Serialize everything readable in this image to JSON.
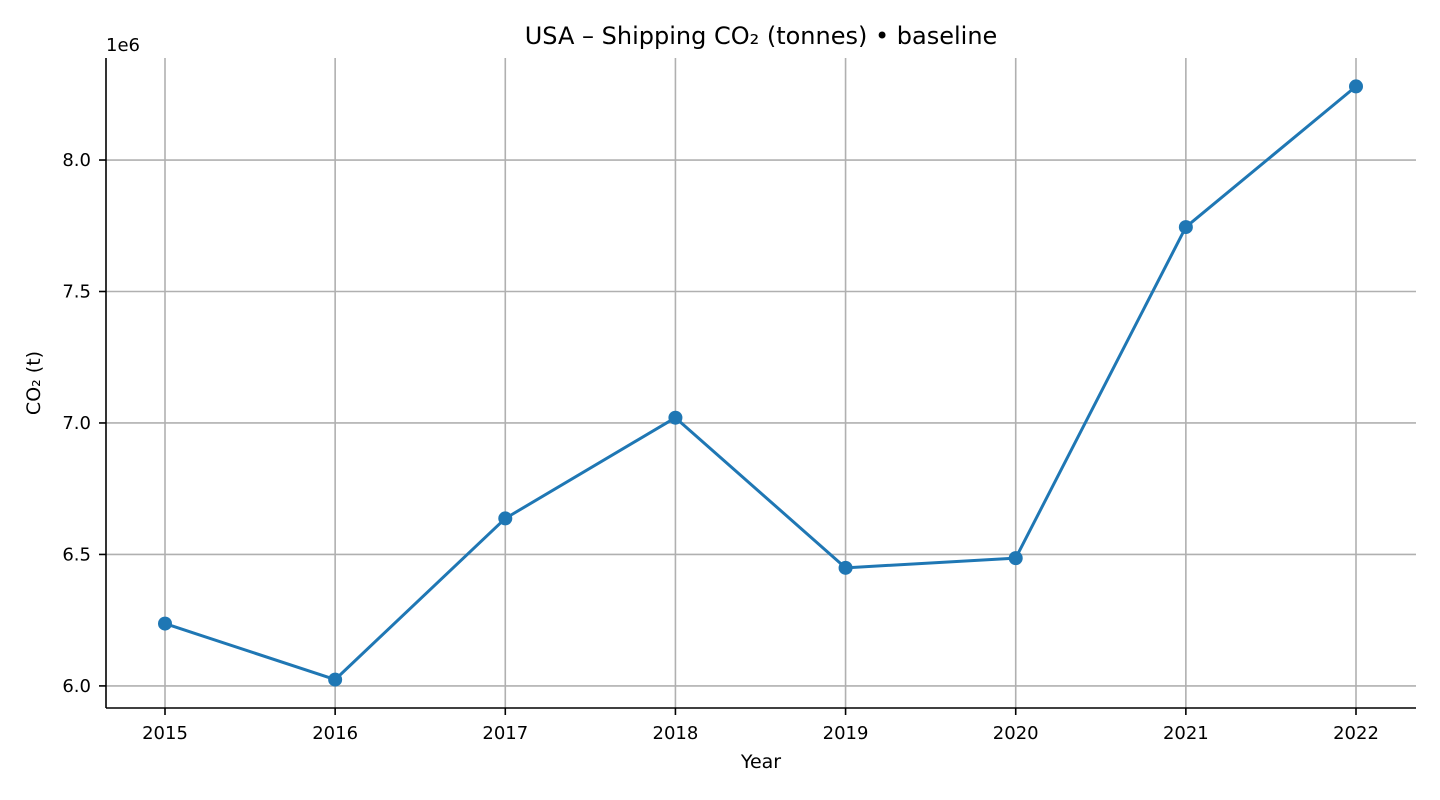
{
  "chart_data": {
    "type": "line",
    "title": "USA – Shipping CO₂ (tonnes) • baseline",
    "xlabel": "Year",
    "ylabel": "CO₂ (t)",
    "y_offset_label": "1e6",
    "x": [
      "2015",
      "2016",
      "2017",
      "2018",
      "2019",
      "2020",
      "2021",
      "2022"
    ],
    "series": [
      {
        "values": [
          6237000,
          6024000,
          6637000,
          7020000,
          6449000,
          6486000,
          7745000,
          8280000
        ],
        "color": "#1f77b4",
        "marker": "circle"
      }
    ],
    "y_ticks": [
      6.0,
      6.5,
      7.0,
      7.5,
      8.0
    ],
    "y_tick_labels": [
      "6.0",
      "6.5",
      "7.0",
      "7.5",
      "8.0"
    ],
    "ylim": [
      5916000,
      8388000
    ],
    "grid": true
  }
}
